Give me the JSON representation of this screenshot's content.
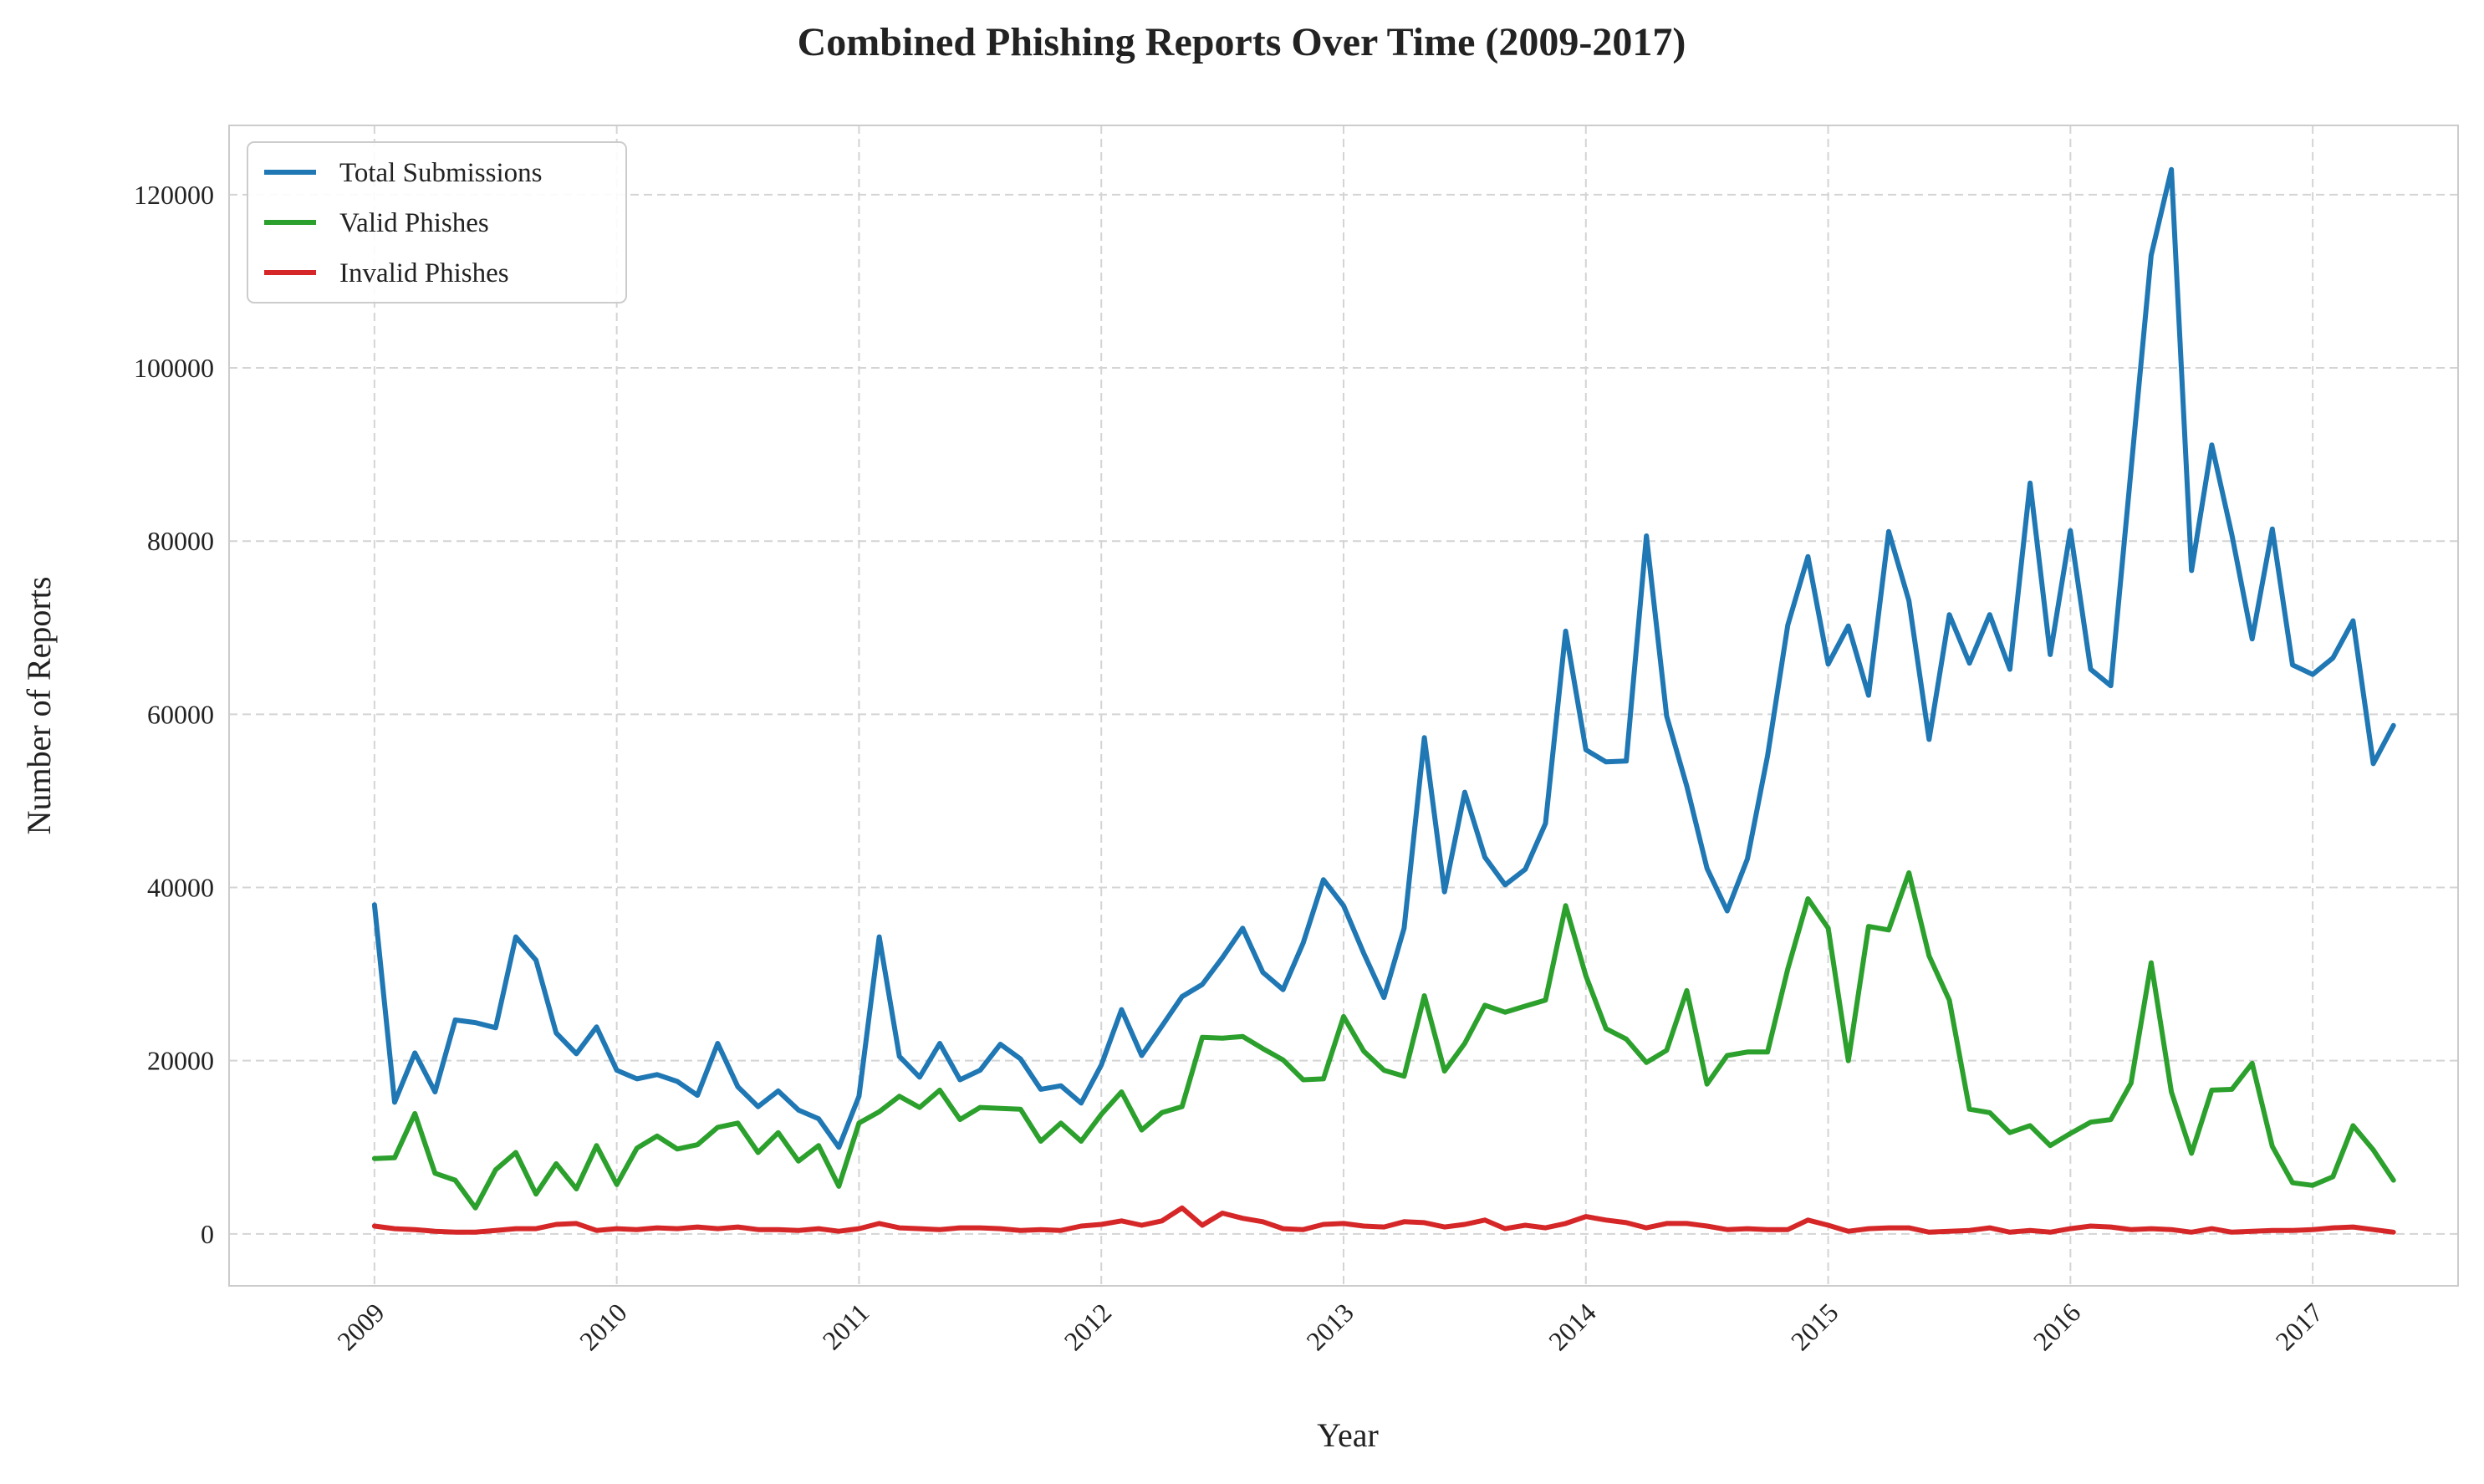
{
  "chart_data": {
    "type": "line",
    "title": "Combined Phishing Reports Over Time (2009-2017)",
    "xlabel": "Year",
    "ylabel": "Number of Reports",
    "x_range": [
      2008.4,
      2017.6
    ],
    "ylim": [
      -6000,
      128000
    ],
    "x_ticks": [
      2009,
      2010,
      2011,
      2012,
      2013,
      2014,
      2015,
      2016,
      2017
    ],
    "x_tick_labels": [
      "2009",
      "2010",
      "2011",
      "2012",
      "2013",
      "2014",
      "2015",
      "2016",
      "2017"
    ],
    "y_ticks": [
      0,
      20000,
      40000,
      60000,
      80000,
      100000,
      120000
    ],
    "y_tick_labels": [
      "0",
      "20000",
      "40000",
      "60000",
      "80000",
      "100000",
      "120000"
    ],
    "grid": true,
    "legend_position": "top-left",
    "x_start": "2009-01",
    "x_end": "2017-05",
    "x_frequency": "monthly",
    "series": [
      {
        "name": "Total Submissions",
        "color": "#1f77b4",
        "values": [
          38000,
          15200,
          20900,
          16400,
          24700,
          24400,
          23800,
          34300,
          31600,
          23200,
          20800,
          23900,
          18900,
          17900,
          18400,
          17600,
          16000,
          22000,
          17000,
          14700,
          16500,
          14300,
          13300,
          10000,
          15900,
          34300,
          20500,
          18100,
          22000,
          17800,
          18900,
          21900,
          20200,
          16700,
          17100,
          15100,
          19500,
          25900,
          20600,
          24000,
          27400,
          28800,
          31900,
          35300,
          30200,
          28200,
          33600,
          40900,
          37900,
          32400,
          27300,
          35300,
          57300,
          39500,
          51000,
          43500,
          40300,
          42100,
          47400,
          69600,
          55900,
          54500,
          54600,
          80600,
          59800,
          51700,
          42200,
          37300,
          43300,
          55200,
          70300,
          78200,
          65800,
          70200,
          62200,
          81100,
          73100,
          57100,
          71500,
          65900,
          71500,
          65200,
          86700,
          66900,
          81200,
          65200,
          63300,
          88200,
          113000,
          122900,
          76600,
          91100,
          80700,
          68700,
          81400,
          65700,
          64600,
          66500,
          70800,
          54300,
          58700
        ]
      },
      {
        "name": "Valid Phishes",
        "color": "#2ca02c",
        "values": [
          8700,
          8800,
          13900,
          7000,
          6200,
          3000,
          7400,
          9400,
          4600,
          8100,
          5200,
          10200,
          5700,
          9900,
          11300,
          9800,
          10300,
          12300,
          12800,
          9400,
          11700,
          8400,
          10200,
          5500,
          12800,
          14100,
          15900,
          14600,
          16600,
          13200,
          14600,
          14500,
          14400,
          10700,
          12800,
          10700,
          13800,
          16400,
          12000,
          14000,
          14700,
          22700,
          22600,
          22800,
          21400,
          20100,
          17800,
          17900,
          25100,
          21100,
          18900,
          18200,
          27500,
          18800,
          22000,
          26400,
          25600,
          26300,
          27000,
          37900,
          29800,
          23700,
          22500,
          19800,
          21200,
          28100,
          17300,
          20600,
          21000,
          21000,
          30600,
          38700,
          35300,
          20000,
          35500,
          35100,
          41700,
          32100,
          27000,
          14400,
          14000,
          11700,
          12500,
          10200,
          11600,
          12900,
          13200,
          17400,
          31300,
          16400,
          9300,
          16600,
          16700,
          19700,
          10100,
          5900,
          5600,
          6600,
          12500,
          9700,
          6200
        ]
      },
      {
        "name": "Invalid Phishes",
        "color": "#d62728",
        "values": [
          900,
          600,
          500,
          300,
          200,
          200,
          400,
          600,
          600,
          1100,
          1200,
          400,
          600,
          500,
          700,
          600,
          800,
          600,
          800,
          500,
          500,
          400,
          600,
          300,
          600,
          1200,
          700,
          600,
          500,
          700,
          700,
          600,
          400,
          500,
          400,
          900,
          1100,
          1500,
          1000,
          1500,
          3000,
          1000,
          2400,
          1800,
          1400,
          600,
          500,
          1100,
          1200,
          900,
          800,
          1400,
          1300,
          800,
          1100,
          1600,
          600,
          1000,
          700,
          1200,
          2000,
          1600,
          1300,
          700,
          1200,
          1200,
          900,
          500,
          600,
          500,
          500,
          1600,
          1000,
          300,
          600,
          700,
          700,
          200,
          300,
          400,
          700,
          200,
          400,
          200,
          600,
          900,
          800,
          500,
          600,
          500,
          200,
          600,
          200,
          300,
          400,
          400,
          500,
          700,
          800,
          500,
          200
        ]
      }
    ]
  }
}
